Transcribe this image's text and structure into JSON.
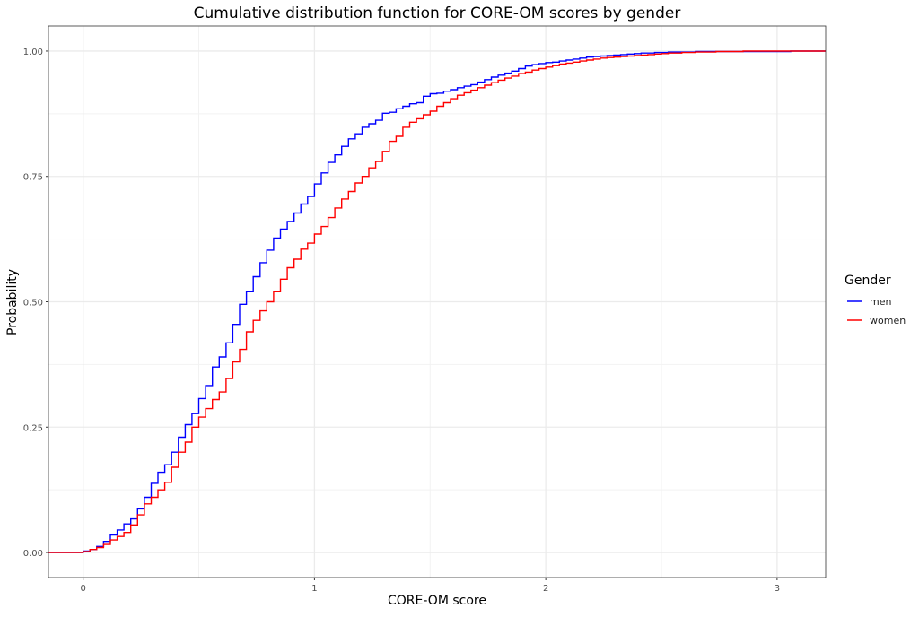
{
  "chart_data": {
    "type": "line",
    "subtype": "ecdf-step",
    "title": "Cumulative distribution function for CORE-OM scores by gender",
    "xlabel": "CORE-OM score",
    "ylabel": "Probability",
    "xlim": [
      -0.15,
      3.21
    ],
    "ylim": [
      -0.05,
      1.05
    ],
    "xticks": [
      0,
      1,
      2,
      3
    ],
    "xtick_labels": [
      "0",
      "1",
      "2",
      "3"
    ],
    "yticks": [
      0,
      0.25,
      0.5,
      0.75,
      1.0
    ],
    "ytick_labels": [
      "0.00",
      "0.25",
      "0.50",
      "0.75",
      "1.00"
    ],
    "grid": true,
    "legend": {
      "title": "Gender",
      "placement": "right"
    },
    "x_step": 0.0294117647,
    "x_start": 0,
    "series": [
      {
        "name": "men",
        "color": "#0000FF",
        "values": [
          0.003,
          0.006,
          0.012,
          0.022,
          0.035,
          0.045,
          0.057,
          0.067,
          0.087,
          0.11,
          0.138,
          0.16,
          0.175,
          0.2,
          0.23,
          0.255,
          0.277,
          0.307,
          0.333,
          0.37,
          0.39,
          0.418,
          0.455,
          0.495,
          0.52,
          0.55,
          0.578,
          0.603,
          0.627,
          0.645,
          0.66,
          0.677,
          0.695,
          0.71,
          0.735,
          0.757,
          0.778,
          0.793,
          0.81,
          0.825,
          0.835,
          0.848,
          0.855,
          0.862,
          0.876,
          0.878,
          0.885,
          0.89,
          0.895,
          0.897,
          0.91,
          0.915,
          0.916,
          0.92,
          0.923,
          0.927,
          0.93,
          0.933,
          0.938,
          0.943,
          0.948,
          0.952,
          0.956,
          0.96,
          0.965,
          0.97,
          0.973,
          0.975,
          0.977,
          0.978,
          0.98,
          0.982,
          0.984,
          0.986,
          0.988,
          0.989,
          0.99,
          0.991,
          0.992,
          0.993,
          0.994,
          0.995,
          0.996,
          0.996,
          0.997,
          0.997,
          0.998,
          0.998,
          0.998,
          0.998,
          0.999,
          0.999,
          0.999,
          0.999,
          0.999,
          0.999,
          0.999,
          0.999,
          0.999,
          0.999,
          0.999,
          0.999,
          0.999,
          0.999,
          1.0
        ]
      },
      {
        "name": "women",
        "color": "#FF0000",
        "values": [
          0.002,
          0.006,
          0.01,
          0.016,
          0.025,
          0.032,
          0.04,
          0.055,
          0.075,
          0.097,
          0.11,
          0.125,
          0.14,
          0.17,
          0.2,
          0.22,
          0.25,
          0.27,
          0.287,
          0.305,
          0.32,
          0.347,
          0.38,
          0.405,
          0.44,
          0.463,
          0.482,
          0.5,
          0.52,
          0.545,
          0.568,
          0.585,
          0.605,
          0.617,
          0.635,
          0.65,
          0.668,
          0.687,
          0.705,
          0.72,
          0.737,
          0.75,
          0.767,
          0.78,
          0.8,
          0.82,
          0.83,
          0.848,
          0.858,
          0.865,
          0.873,
          0.88,
          0.89,
          0.897,
          0.905,
          0.912,
          0.917,
          0.922,
          0.927,
          0.932,
          0.937,
          0.942,
          0.946,
          0.95,
          0.955,
          0.958,
          0.962,
          0.965,
          0.968,
          0.971,
          0.974,
          0.976,
          0.978,
          0.98,
          0.982,
          0.984,
          0.986,
          0.987,
          0.988,
          0.989,
          0.99,
          0.991,
          0.992,
          0.993,
          0.994,
          0.995,
          0.996,
          0.996,
          0.997,
          0.997,
          0.998,
          0.998,
          0.998,
          0.999,
          0.999,
          0.999,
          0.999,
          1.0
        ]
      }
    ]
  }
}
